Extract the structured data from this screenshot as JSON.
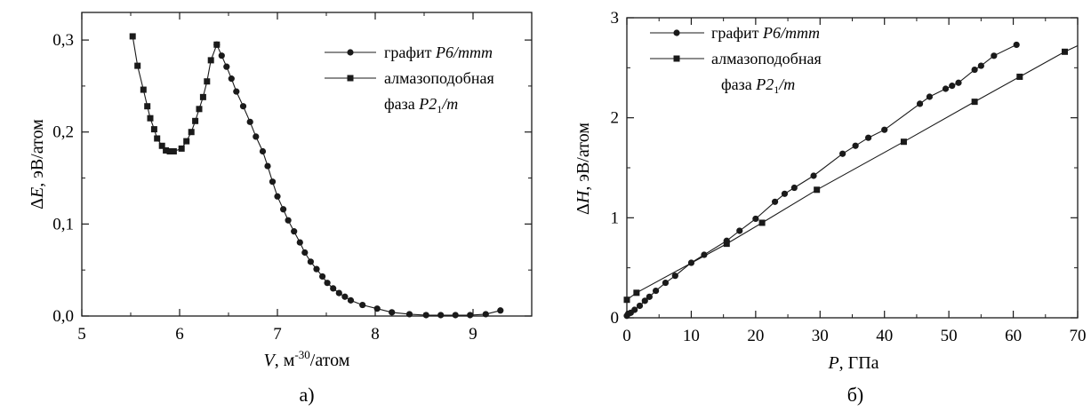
{
  "chart_data": [
    {
      "type": "scatter",
      "caption": "а)",
      "xlabel": {
        "var": "V",
        "unit_pre": ", м",
        "unit_exp": "-30",
        "unit_post": "/атом"
      },
      "ylabel": {
        "pre": "Δ",
        "var": "E",
        "post": ", эВ/атом"
      },
      "xlim": [
        5,
        9.6
      ],
      "ylim": [
        0,
        0.33
      ],
      "xticks": [
        5,
        6,
        7,
        8,
        9
      ],
      "xtick_labels": [
        "5",
        "6",
        "7",
        "8",
        "9"
      ],
      "yticks": [
        0,
        0.1,
        0.2,
        0.3
      ],
      "ytick_labels": [
        "0,0",
        "0,1",
        "0,2",
        "0,3"
      ],
      "legend_position": "top-right",
      "series": [
        {
          "name": "графит",
          "name_italic": "P6/mmm",
          "marker": "circle",
          "points": [
            [
              6.38,
              0.295
            ],
            [
              6.43,
              0.283
            ],
            [
              6.48,
              0.271
            ],
            [
              6.53,
              0.258
            ],
            [
              6.58,
              0.244
            ],
            [
              6.65,
              0.228
            ],
            [
              6.72,
              0.211
            ],
            [
              6.78,
              0.195
            ],
            [
              6.85,
              0.179
            ],
            [
              6.9,
              0.163
            ],
            [
              6.95,
              0.146
            ],
            [
              7.0,
              0.13
            ],
            [
              7.06,
              0.116
            ],
            [
              7.11,
              0.104
            ],
            [
              7.17,
              0.092
            ],
            [
              7.23,
              0.08
            ],
            [
              7.28,
              0.069
            ],
            [
              7.34,
              0.059
            ],
            [
              7.4,
              0.051
            ],
            [
              7.46,
              0.043
            ],
            [
              7.51,
              0.036
            ],
            [
              7.57,
              0.03
            ],
            [
              7.63,
              0.025
            ],
            [
              7.69,
              0.021
            ],
            [
              7.75,
              0.017
            ],
            [
              7.87,
              0.012
            ],
            [
              8.02,
              0.008
            ],
            [
              8.17,
              0.004
            ],
            [
              8.35,
              0.002
            ],
            [
              8.52,
              0.001
            ],
            [
              8.67,
              0.001
            ],
            [
              8.82,
              0.001
            ],
            [
              8.97,
              0.001
            ],
            [
              9.13,
              0.002
            ],
            [
              9.28,
              0.006
            ]
          ]
        },
        {
          "name": "алмазоподобная фаза",
          "name_line1": "алмазоподобная",
          "name_line2": "фаза",
          "name_italic": "P2",
          "name_sub": "1",
          "name_italic_tail": "/m",
          "marker": "square",
          "points": [
            [
              5.52,
              0.304
            ],
            [
              5.57,
              0.272
            ],
            [
              5.63,
              0.246
            ],
            [
              5.67,
              0.228
            ],
            [
              5.7,
              0.215
            ],
            [
              5.74,
              0.203
            ],
            [
              5.77,
              0.193
            ],
            [
              5.82,
              0.185
            ],
            [
              5.86,
              0.18
            ],
            [
              5.9,
              0.179
            ],
            [
              5.94,
              0.179
            ],
            [
              6.02,
              0.182
            ],
            [
              6.07,
              0.19
            ],
            [
              6.12,
              0.2
            ],
            [
              6.16,
              0.212
            ],
            [
              6.2,
              0.225
            ],
            [
              6.24,
              0.238
            ],
            [
              6.28,
              0.255
            ],
            [
              6.32,
              0.278
            ],
            [
              6.38,
              0.295
            ]
          ]
        }
      ]
    },
    {
      "type": "line",
      "caption": "б)",
      "xlabel": {
        "var": "P",
        "unit": ", ГПа"
      },
      "ylabel": {
        "pre": "Δ",
        "var": "H",
        "post": ", эВ/атом"
      },
      "xlim": [
        0,
        70
      ],
      "ylim": [
        0,
        3
      ],
      "xticks": [
        0,
        10,
        20,
        30,
        40,
        50,
        60,
        70
      ],
      "xtick_labels": [
        "0",
        "10",
        "20",
        "30",
        "40",
        "50",
        "60",
        "70"
      ],
      "yticks": [
        0,
        1,
        2,
        3
      ],
      "ytick_labels": [
        "0",
        "1",
        "2",
        "3"
      ],
      "legend_position": "top-left",
      "series": [
        {
          "name": "графит",
          "name_italic": "P6/mmm",
          "marker": "circle",
          "points": [
            [
              0.0,
              0.02
            ],
            [
              0.2,
              0.04
            ],
            [
              0.6,
              0.05
            ],
            [
              1.2,
              0.08
            ],
            [
              2.0,
              0.12
            ],
            [
              2.8,
              0.17
            ],
            [
              3.5,
              0.21
            ],
            [
              4.5,
              0.27
            ],
            [
              6.0,
              0.35
            ],
            [
              7.5,
              0.42
            ],
            [
              10.0,
              0.55
            ],
            [
              12.0,
              0.63
            ],
            [
              15.5,
              0.77
            ],
            [
              17.5,
              0.87
            ],
            [
              20.0,
              0.99
            ],
            [
              23.0,
              1.16
            ],
            [
              24.5,
              1.24
            ],
            [
              26.0,
              1.3
            ],
            [
              29.0,
              1.42
            ],
            [
              33.5,
              1.64
            ],
            [
              35.5,
              1.72
            ],
            [
              37.5,
              1.8
            ],
            [
              40.0,
              1.88
            ],
            [
              45.5,
              2.14
            ],
            [
              47.0,
              2.21
            ],
            [
              49.5,
              2.29
            ],
            [
              50.5,
              2.32
            ],
            [
              51.5,
              2.35
            ],
            [
              54.0,
              2.48
            ],
            [
              55.0,
              2.52
            ],
            [
              57.0,
              2.62
            ],
            [
              60.5,
              2.73
            ]
          ]
        },
        {
          "name": "алмазоподобная фаза",
          "name_line1": "алмазоподобная",
          "name_line2": "фаза",
          "name_italic": "P2",
          "name_sub": "1",
          "name_italic_tail": "/m",
          "marker": "square",
          "points": [
            [
              0.0,
              0.18
            ],
            [
              1.5,
              0.25
            ],
            [
              15.5,
              0.74
            ],
            [
              21.0,
              0.95
            ],
            [
              29.5,
              1.28
            ],
            [
              43.0,
              1.76
            ],
            [
              54.0,
              2.16
            ],
            [
              61.0,
              2.41
            ],
            [
              68.0,
              2.66
            ],
            [
              70.0,
              2.72
            ]
          ]
        }
      ]
    }
  ]
}
